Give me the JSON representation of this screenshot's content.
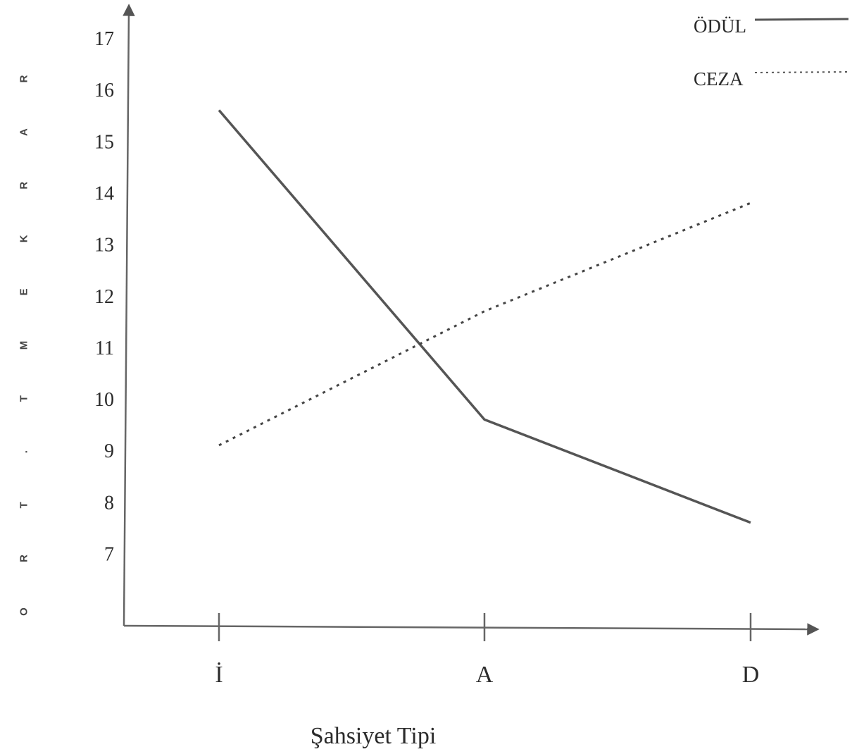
{
  "chart_data": {
    "type": "line",
    "categories": [
      "İ",
      "A",
      "D"
    ],
    "series": [
      {
        "name": "ÖDÜL",
        "values": [
          15.6,
          9.6,
          7.6
        ],
        "style": "solid",
        "color": "#555555"
      },
      {
        "name": "CEZA",
        "values": [
          9.1,
          11.7,
          13.8
        ],
        "style": "dotted",
        "color": "#444444"
      }
    ],
    "yticks": [
      "7",
      "8",
      "9",
      "10",
      "11",
      "12",
      "13",
      "14",
      "15",
      "16",
      "17"
    ],
    "ylim": [
      5.6,
      17.3
    ],
    "xlabel": "Şahsiyet Tipi",
    "ylabel": "O R T . M E K R A R",
    "ylabel_letters": [
      "R",
      "A",
      "R",
      "K",
      "E",
      "M",
      "T",
      ".",
      "T",
      "R",
      "O"
    ],
    "legend_position": "top-right",
    "grid": false
  }
}
